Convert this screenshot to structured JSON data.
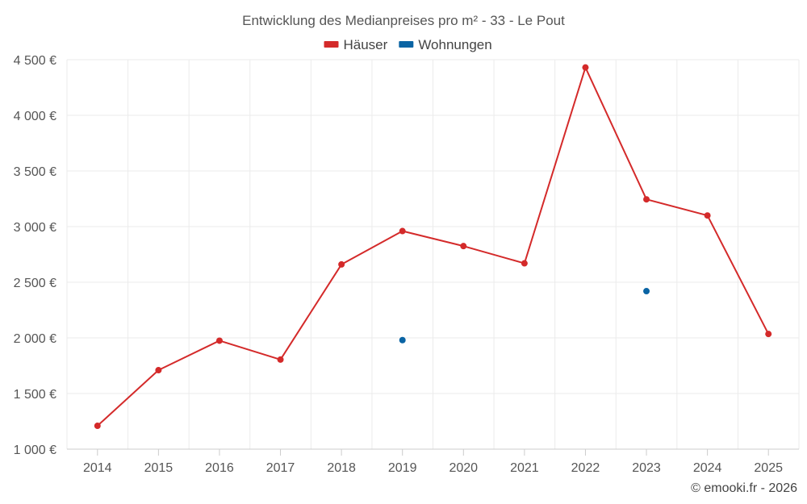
{
  "chart_data": {
    "type": "line",
    "title": "Entwicklung des Medianpreises pro m² - 33 - Le Pout",
    "categories": [
      "2014",
      "2015",
      "2016",
      "2017",
      "2018",
      "2019",
      "2020",
      "2021",
      "2022",
      "2023",
      "2024",
      "2025"
    ],
    "series": [
      {
        "name": "Häuser",
        "color": "#d42a2a",
        "values": [
          1210,
          1710,
          1975,
          1805,
          2660,
          2960,
          2825,
          2670,
          4430,
          3245,
          3100,
          2035
        ]
      },
      {
        "name": "Wohnungen",
        "color": "#0a64a4",
        "values": [
          null,
          null,
          null,
          null,
          null,
          1980,
          null,
          null,
          null,
          2420,
          null,
          null
        ]
      }
    ],
    "ylim": [
      1000,
      4500
    ],
    "yticks": [
      1000,
      1500,
      2000,
      2500,
      3000,
      3500,
      4000,
      4500
    ],
    "ytick_labels": [
      "1 000 €",
      "1 500 €",
      "2 000 €",
      "2 500 €",
      "3 000 €",
      "3 500 €",
      "4 000 €",
      "4 500 €"
    ],
    "xlabel": "",
    "ylabel": "",
    "grid": true,
    "legend_position": "top-center"
  },
  "credit": "© emooki.fr - 2026"
}
